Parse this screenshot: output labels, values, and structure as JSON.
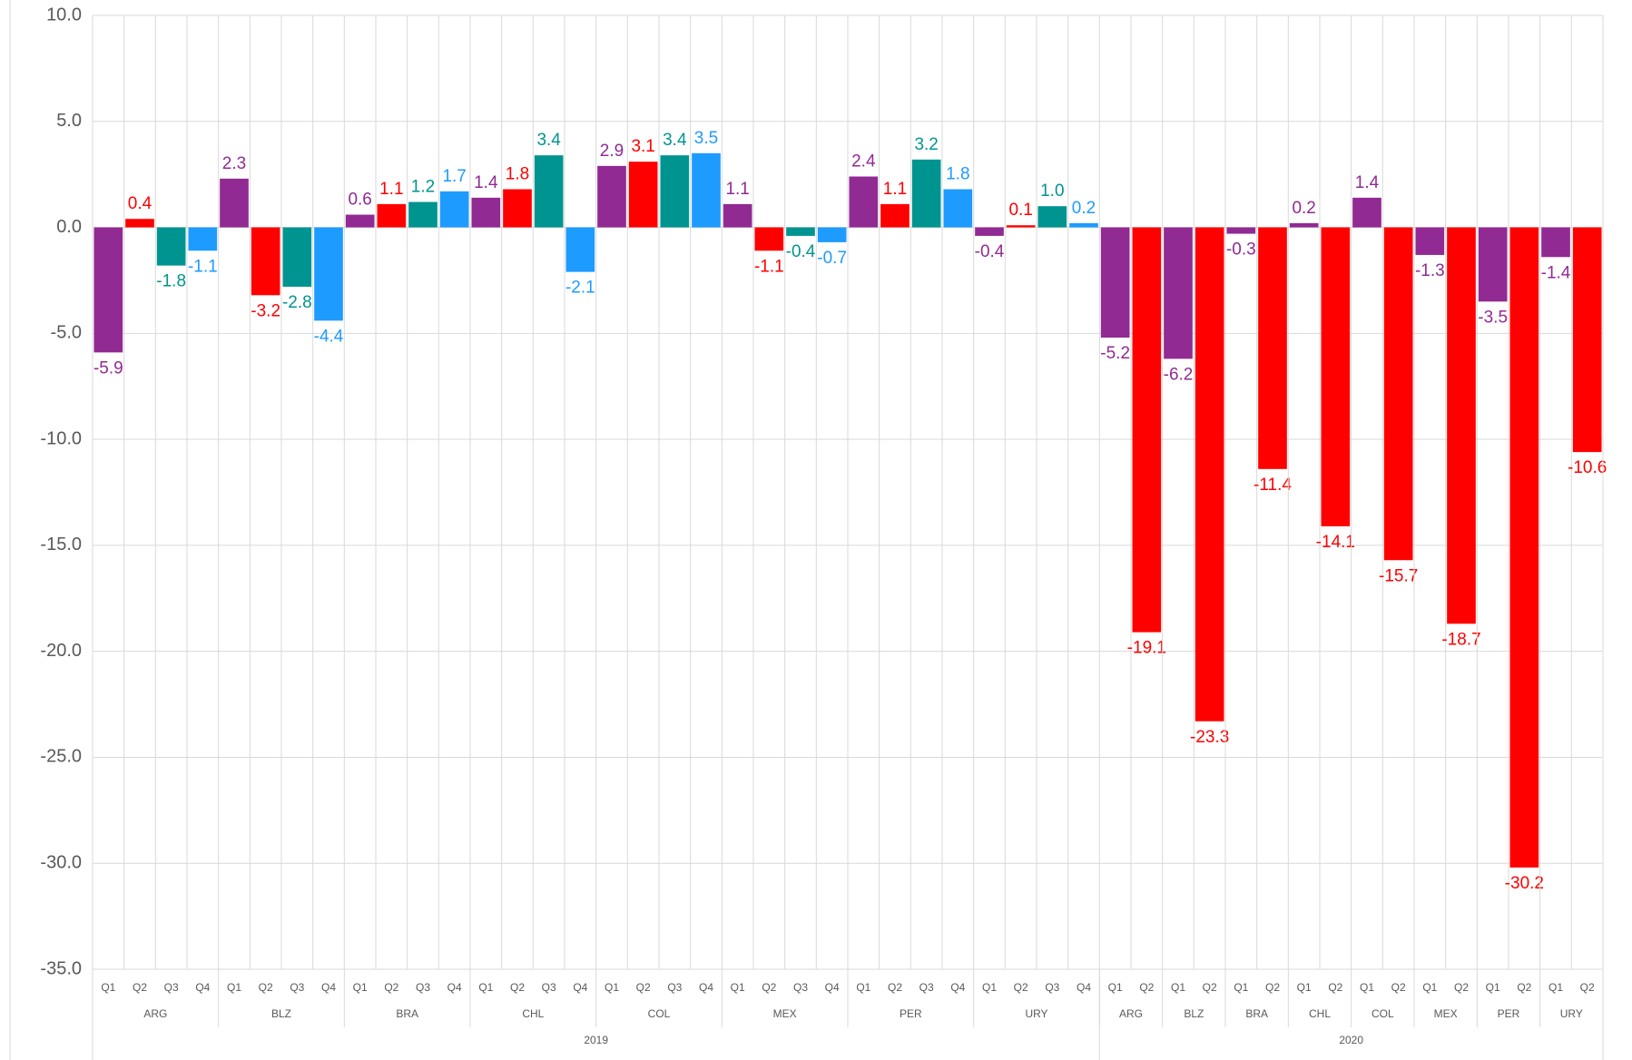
{
  "chart_data": {
    "type": "bar",
    "ylim": [
      -35,
      10
    ],
    "yticks": [
      {
        "value": 10,
        "label": "10.0"
      },
      {
        "value": 5,
        "label": "5.0"
      },
      {
        "value": 0,
        "label": "0.0"
      },
      {
        "value": -5,
        "label": "-5.0"
      },
      {
        "value": -10,
        "label": "-10.0"
      },
      {
        "value": -15,
        "label": "-15.0"
      },
      {
        "value": -20,
        "label": "-20.0"
      },
      {
        "value": -25,
        "label": "-25.0"
      },
      {
        "value": -30,
        "label": "-30.0"
      },
      {
        "value": -35,
        "label": "-35.0"
      }
    ],
    "grid": true,
    "quarter_colors": {
      "Q1": "#912a92",
      "Q2": "#ff0000",
      "Q3": "#009490",
      "Q4": "#1e9bff"
    },
    "years": [
      {
        "name": "2019",
        "countries": [
          {
            "name": "ARG",
            "quarters": [
              "Q1",
              "Q2",
              "Q3",
              "Q4"
            ],
            "values": [
              -5.9,
              0.4,
              -1.8,
              -1.1
            ],
            "value_labels": [
              "-5.9",
              "0.4",
              "-1.8",
              "-1.1"
            ]
          },
          {
            "name": "BLZ",
            "quarters": [
              "Q1",
              "Q2",
              "Q3",
              "Q4"
            ],
            "values": [
              2.3,
              -3.2,
              -2.8,
              -4.4
            ],
            "value_labels": [
              "2.3",
              "-3.2",
              "-2.8",
              "-4.4"
            ]
          },
          {
            "name": "BRA",
            "quarters": [
              "Q1",
              "Q2",
              "Q3",
              "Q4"
            ],
            "values": [
              0.6,
              1.1,
              1.2,
              1.7
            ],
            "value_labels": [
              "0.6",
              "1.1",
              "1.2",
              "1.7"
            ]
          },
          {
            "name": "CHL",
            "quarters": [
              "Q1",
              "Q2",
              "Q3",
              "Q4"
            ],
            "values": [
              1.4,
              1.8,
              3.4,
              -2.1
            ],
            "value_labels": [
              "1.4",
              "1.8",
              "3.4",
              "-2.1"
            ]
          },
          {
            "name": "COL",
            "quarters": [
              "Q1",
              "Q2",
              "Q3",
              "Q4"
            ],
            "values": [
              2.9,
              3.1,
              3.4,
              3.5
            ],
            "value_labels": [
              "2.9",
              "3.1",
              "3.4",
              "3.5"
            ]
          },
          {
            "name": "MEX",
            "quarters": [
              "Q1",
              "Q2",
              "Q3",
              "Q4"
            ],
            "values": [
              1.1,
              -1.1,
              -0.4,
              -0.7
            ],
            "value_labels": [
              "1.1",
              "-1.1",
              "-0.4",
              "-0.7"
            ]
          },
          {
            "name": "PER",
            "quarters": [
              "Q1",
              "Q2",
              "Q3",
              "Q4"
            ],
            "values": [
              2.4,
              1.1,
              3.2,
              1.8
            ],
            "value_labels": [
              "2.4",
              "1.1",
              "3.2",
              "1.8"
            ]
          },
          {
            "name": "URY",
            "quarters": [
              "Q1",
              "Q2",
              "Q3",
              "Q4"
            ],
            "values": [
              -0.4,
              0.1,
              1.0,
              0.2
            ],
            "value_labels": [
              "-0.4",
              "0.1",
              "1.0",
              "0.2"
            ]
          }
        ]
      },
      {
        "name": "2020",
        "countries": [
          {
            "name": "ARG",
            "quarters": [
              "Q1",
              "Q2"
            ],
            "values": [
              -5.2,
              -19.1
            ],
            "value_labels": [
              "-5.2",
              "-19.1"
            ]
          },
          {
            "name": "BLZ",
            "quarters": [
              "Q1",
              "Q2"
            ],
            "values": [
              -6.2,
              -23.3
            ],
            "value_labels": [
              "-6.2",
              "-23.3"
            ]
          },
          {
            "name": "BRA",
            "quarters": [
              "Q1",
              "Q2"
            ],
            "values": [
              -0.3,
              -11.4
            ],
            "value_labels": [
              "-0.3",
              "-11.4"
            ]
          },
          {
            "name": "CHL",
            "quarters": [
              "Q1",
              "Q2"
            ],
            "values": [
              0.2,
              -14.1
            ],
            "value_labels": [
              "0.2",
              "-14.1"
            ]
          },
          {
            "name": "COL",
            "quarters": [
              "Q1",
              "Q2"
            ],
            "values": [
              1.4,
              -15.7
            ],
            "value_labels": [
              "1.4",
              "-15.7"
            ]
          },
          {
            "name": "MEX",
            "quarters": [
              "Q1",
              "Q2"
            ],
            "values": [
              -1.3,
              -18.7
            ],
            "value_labels": [
              "-1.3",
              "-18.7"
            ]
          },
          {
            "name": "PER",
            "quarters": [
              "Q1",
              "Q2"
            ],
            "values": [
              -3.5,
              -30.2
            ],
            "value_labels": [
              "-3.5",
              "-30.2"
            ]
          },
          {
            "name": "URY",
            "quarters": [
              "Q1",
              "Q2"
            ],
            "values": [
              -1.4,
              -10.6
            ],
            "value_labels": [
              "-1.4",
              "-10.6"
            ]
          }
        ]
      }
    ]
  }
}
